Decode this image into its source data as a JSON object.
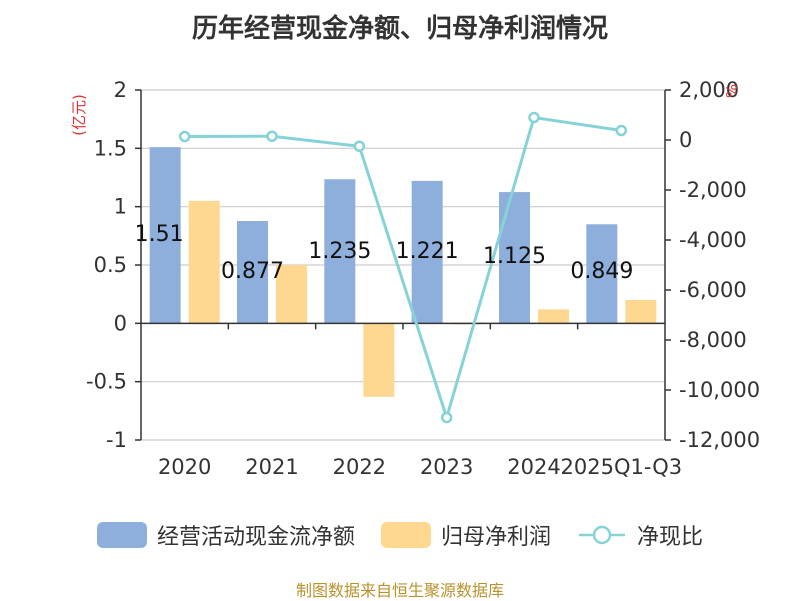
{
  "chart_data": {
    "title": "历年经营现金净额、归母净利润情况",
    "type": "bar",
    "categories": [
      "2020",
      "2021",
      "2022",
      "2023",
      "2024",
      "2025Q1-Q3"
    ],
    "y_left": {
      "label": "(亿元)",
      "min": -1,
      "max": 2,
      "ticks": [
        "2",
        "1.5",
        "1",
        "0.5",
        "0",
        "-0.5",
        "-1"
      ],
      "tick_values": [
        2,
        1.5,
        1,
        0.5,
        0,
        -0.5,
        -1
      ]
    },
    "y_right": {
      "label": "%",
      "min": -12000,
      "max": 2000,
      "ticks": [
        "2,000",
        "0",
        "-2,000",
        "-4,000",
        "-6,000",
        "-8,000",
        "-10,000",
        "-12,000"
      ],
      "tick_values": [
        2000,
        0,
        -2000,
        -4000,
        -6000,
        -8000,
        -10000,
        -12000
      ]
    },
    "series": [
      {
        "name": "经营活动现金流净额",
        "type": "bar",
        "axis": "left",
        "color": "#8eaedb",
        "values": [
          1.51,
          0.877,
          1.235,
          1.221,
          1.125,
          0.849
        ],
        "labels": [
          "1.51",
          "0.877",
          "1.235",
          "1.221",
          "1.125",
          "0.849"
        ]
      },
      {
        "name": "归母净利润",
        "type": "bar",
        "axis": "left",
        "color": "#fed891",
        "values": [
          1.05,
          0.5,
          -0.63,
          -0.01,
          0.12,
          0.2
        ]
      },
      {
        "name": "净现比",
        "type": "line",
        "axis": "right",
        "color": "#86d3d7",
        "values": [
          140,
          150,
          -250,
          -11100,
          900,
          380
        ]
      }
    ],
    "grid": true,
    "legend_position": "bottom"
  },
  "source_note": "制图数据来自恒生聚源数据库"
}
